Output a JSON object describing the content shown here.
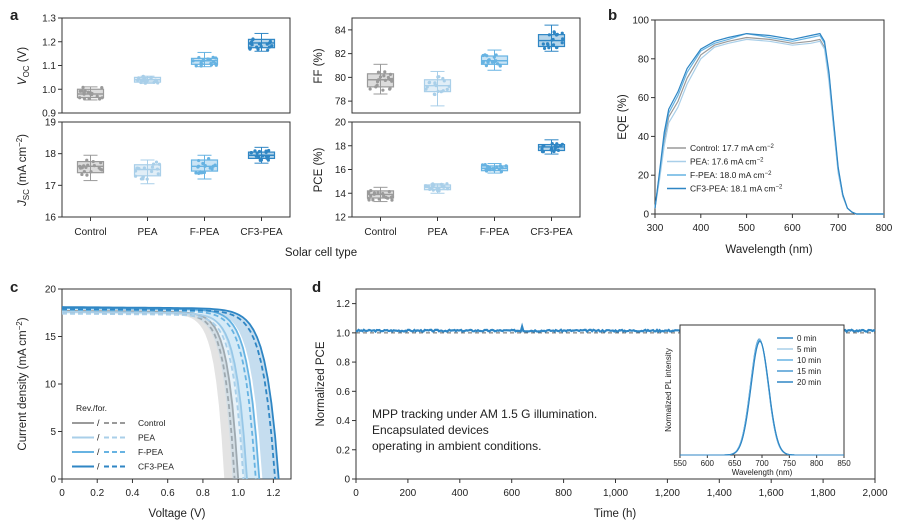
{
  "colors": {
    "control": "#9a9a9a",
    "pea": "#a9cfe9",
    "fpea": "#67b3e2",
    "cf3pea": "#2f86c4",
    "axis": "#333333"
  },
  "panel_labels": {
    "a": "a",
    "b": "b",
    "c": "c",
    "d": "d"
  },
  "chart_data": [
    {
      "id": "voc",
      "type": "box",
      "categories": [
        "Control",
        "PEA",
        "F-PEA",
        "CF3-PEA"
      ],
      "ylabel": "V",
      "ylabel_sub": "OC",
      "ylabel_unit": " (V)",
      "ylim": [
        0.9,
        1.3
      ],
      "yticks": [
        "0.9",
        "1.0",
        "1.1",
        "1.2",
        "1.3"
      ],
      "boxes": [
        {
          "min": 0.955,
          "q1": 0.965,
          "median": 0.98,
          "q3": 1.0,
          "max": 1.01
        },
        {
          "min": 1.025,
          "q1": 1.03,
          "median": 1.04,
          "q3": 1.05,
          "max": 1.055
        },
        {
          "min": 1.095,
          "q1": 1.105,
          "median": 1.12,
          "q3": 1.13,
          "max": 1.155
        },
        {
          "min": 1.16,
          "q1": 1.175,
          "median": 1.195,
          "q3": 1.21,
          "max": 1.235
        }
      ]
    },
    {
      "id": "ff",
      "type": "box",
      "categories": [
        "Control",
        "PEA",
        "F-PEA",
        "CF3-PEA"
      ],
      "ylabel": "FF (%)",
      "ylim": [
        77,
        85
      ],
      "yticks": [
        "78",
        "80",
        "82",
        "84"
      ],
      "boxes": [
        {
          "min": 78.6,
          "q1": 79.2,
          "median": 79.8,
          "q3": 80.3,
          "max": 81.1
        },
        {
          "min": 77.6,
          "q1": 78.8,
          "median": 79.3,
          "q3": 79.8,
          "max": 80.5
        },
        {
          "min": 80.6,
          "q1": 81.1,
          "median": 81.4,
          "q3": 81.8,
          "max": 82.3
        },
        {
          "min": 82.2,
          "q1": 82.6,
          "median": 83.1,
          "q3": 83.6,
          "max": 84.4
        }
      ]
    },
    {
      "id": "jsc",
      "type": "box",
      "categories": [
        "Control",
        "PEA",
        "F-PEA",
        "CF3-PEA"
      ],
      "ylabel": "J",
      "ylabel_sub": "SC",
      "ylabel_unit": " (mA cm",
      "ylabel_sup": "−2",
      "ylabel_end": ")",
      "ylim": [
        16,
        19
      ],
      "yticks": [
        "16",
        "17",
        "18",
        "19"
      ],
      "boxes": [
        {
          "min": 17.15,
          "q1": 17.4,
          "median": 17.6,
          "q3": 17.75,
          "max": 17.95
        },
        {
          "min": 17.05,
          "q1": 17.3,
          "median": 17.5,
          "q3": 17.65,
          "max": 17.8
        },
        {
          "min": 17.2,
          "q1": 17.45,
          "median": 17.6,
          "q3": 17.8,
          "max": 17.95
        },
        {
          "min": 17.7,
          "q1": 17.85,
          "median": 17.95,
          "q3": 18.05,
          "max": 18.2
        }
      ]
    },
    {
      "id": "pce",
      "type": "box",
      "categories": [
        "Control",
        "PEA",
        "F-PEA",
        "CF3-PEA"
      ],
      "ylabel": "PCE (%)",
      "ylim": [
        12,
        20
      ],
      "yticks": [
        "12",
        "14",
        "16",
        "18",
        "20"
      ],
      "boxes": [
        {
          "min": 13.3,
          "q1": 13.6,
          "median": 13.9,
          "q3": 14.2,
          "max": 14.5
        },
        {
          "min": 14.0,
          "q1": 14.3,
          "median": 14.5,
          "q3": 14.7,
          "max": 14.8
        },
        {
          "min": 15.7,
          "q1": 15.9,
          "median": 16.1,
          "q3": 16.3,
          "max": 16.5
        },
        {
          "min": 17.3,
          "q1": 17.6,
          "median": 17.9,
          "q3": 18.1,
          "max": 18.5
        }
      ]
    },
    {
      "id": "eqe",
      "type": "line",
      "xlabel": "Wavelength (nm)",
      "ylabel": "EQE (%)",
      "xlim": [
        300,
        800
      ],
      "ylim": [
        0,
        100
      ],
      "xticks": [
        "300",
        "400",
        "500",
        "600",
        "700",
        "800"
      ],
      "yticks": [
        "0",
        "20",
        "40",
        "60",
        "80",
        "100"
      ],
      "x": [
        300,
        310,
        320,
        330,
        350,
        370,
        400,
        430,
        460,
        500,
        550,
        600,
        640,
        660,
        670,
        680,
        690,
        700,
        710,
        720,
        730,
        740,
        760,
        800
      ],
      "series": [
        {
          "name": "Control",
          "legend": "Control: 17.7 mA cm",
          "values": [
            3,
            20,
            38,
            50,
            58,
            70,
            82,
            87,
            89,
            91,
            90,
            88,
            89,
            90,
            86,
            70,
            45,
            22,
            9,
            3,
            1,
            0,
            0,
            0
          ]
        },
        {
          "name": "PEA",
          "legend": "PEA: 17.6 mA cm",
          "values": [
            3,
            18,
            35,
            47,
            55,
            67,
            80,
            86,
            88,
            90,
            89,
            87,
            88,
            89,
            85,
            68,
            44,
            21,
            9,
            3,
            1,
            0,
            0,
            0
          ]
        },
        {
          "name": "F-PEA",
          "legend": "F-PEA: 18.0 mA cm",
          "values": [
            3,
            21,
            40,
            52,
            61,
            73,
            84,
            88,
            90,
            93,
            91,
            89,
            91,
            92,
            88,
            72,
            47,
            23,
            10,
            3,
            1,
            0,
            0,
            0
          ]
        },
        {
          "name": "CF3-PEA",
          "legend": "CF3-PEA: 18.1 mA cm",
          "values": [
            3,
            22,
            42,
            54,
            63,
            75,
            85,
            89,
            91,
            93,
            92,
            90,
            92,
            93,
            89,
            73,
            48,
            24,
            10,
            3,
            1,
            0,
            0,
            0
          ]
        }
      ]
    },
    {
      "id": "jv",
      "type": "line",
      "xlabel": "Voltage (V)",
      "ylabel": "Current density (mA cm",
      "ylabel_sup": "−2",
      "ylabel_end": ")",
      "xlim": [
        0,
        1.3
      ],
      "ylim": [
        0,
        20
      ],
      "xticks": [
        "0",
        "0.2",
        "0.4",
        "0.6",
        "0.8",
        "1.0",
        "1.2"
      ],
      "yticks": [
        "0",
        "5",
        "10",
        "15",
        "20"
      ],
      "legend_title": "Rev./for.",
      "series": [
        {
          "name": "Control",
          "jsc": 17.7,
          "voc_rev": 1.0,
          "voc_for": 0.98,
          "n": 2.2
        },
        {
          "name": "PEA",
          "jsc": 17.6,
          "voc_rev": 1.05,
          "voc_for": 1.03,
          "n": 2.1
        },
        {
          "name": "F-PEA",
          "jsc": 18.0,
          "voc_rev": 1.12,
          "voc_for": 1.1,
          "n": 1.9
        },
        {
          "name": "CF3-PEA",
          "jsc": 18.1,
          "voc_rev": 1.23,
          "voc_for": 1.21,
          "n": 1.7
        }
      ]
    },
    {
      "id": "mpp",
      "type": "line",
      "xlabel": "Time (h)",
      "ylabel": "Normalized PCE",
      "xlim": [
        0,
        2000
      ],
      "ylim": [
        0,
        1.3
      ],
      "xticks": [
        "0",
        "200",
        "400",
        "600",
        "800",
        "1,000",
        "1,200",
        "1,400",
        "1,600",
        "1,800",
        "2,000"
      ],
      "yticks": [
        "0",
        "0.2",
        "0.4",
        "0.6",
        "0.8",
        "1.0",
        "1.2"
      ],
      "series": [
        {
          "name": "CF3-PEA",
          "level": 1.015
        }
      ],
      "reference_level": 1.0,
      "annotation": [
        "MPP tracking under AM 1.5 G illumination.",
        "Encapsulated devices",
        "operating in ambient conditions."
      ]
    },
    {
      "id": "pl_inset",
      "type": "line",
      "xlabel": "Wavelength (nm)",
      "ylabel": "Normalized PL intensity",
      "xlim": [
        550,
        850
      ],
      "xticks": [
        "550",
        "600",
        "650",
        "700",
        "750",
        "800",
        "850"
      ],
      "peak": 695,
      "fwhm": 38,
      "series": [
        {
          "name": "0 min"
        },
        {
          "name": "5 min"
        },
        {
          "name": "10 min"
        },
        {
          "name": "15 min"
        },
        {
          "name": "20 min"
        }
      ]
    }
  ],
  "shared": {
    "xlabel_a": "Solar cell type"
  }
}
